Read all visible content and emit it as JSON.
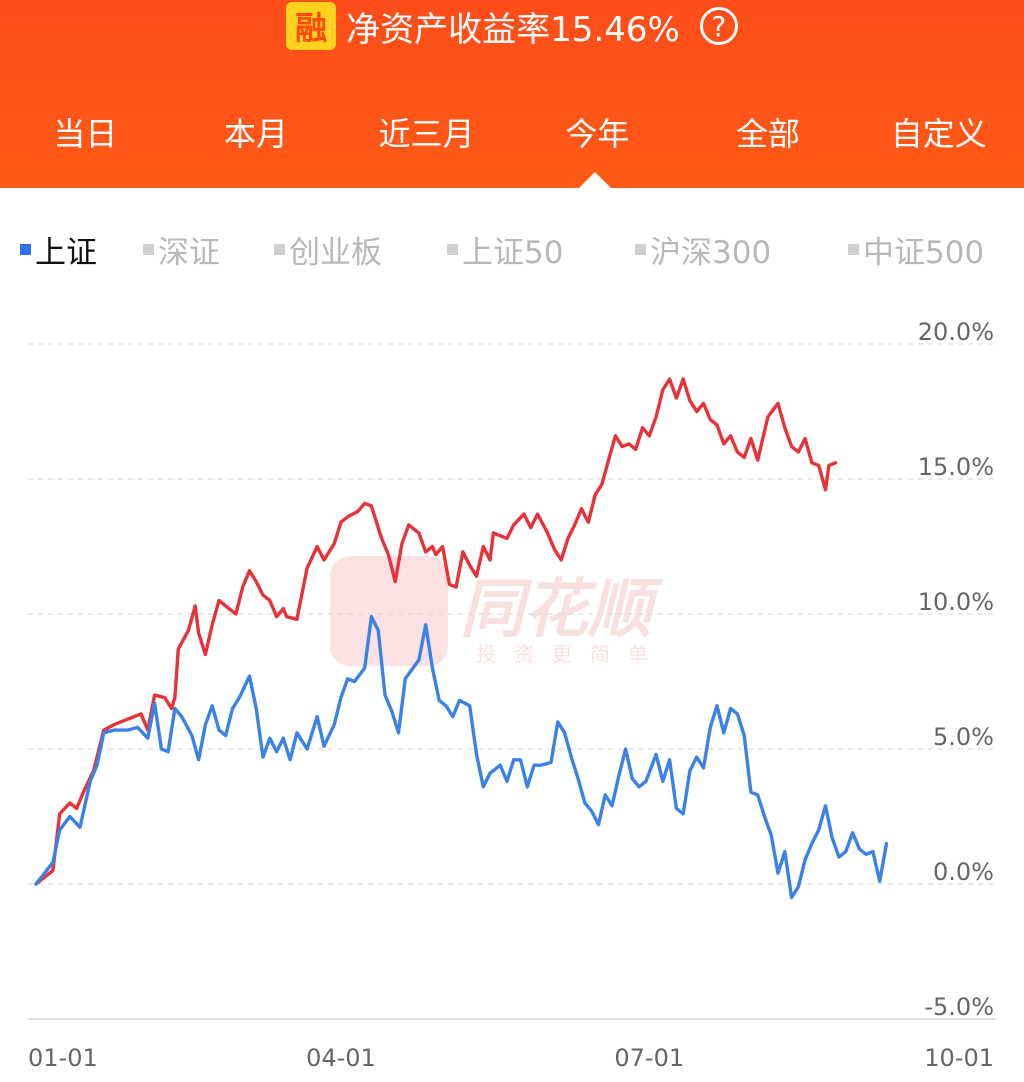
{
  "header": {
    "badge": "融",
    "title": "净资产收益率15.46%",
    "help_glyph": "?",
    "tabs": [
      "当日",
      "本月",
      "近三月",
      "今年",
      "全部",
      "自定义"
    ],
    "active_tab": 3
  },
  "indices": [
    {
      "label": "上证",
      "active": true
    },
    {
      "label": "深证",
      "active": false
    },
    {
      "label": "创业板",
      "active": false
    },
    {
      "label": "上证50",
      "active": false
    },
    {
      "label": "沪深300",
      "active": false
    },
    {
      "label": "中证500",
      "active": false
    }
  ],
  "watermark": {
    "brand": "同花顺",
    "slogan": "投资更简单"
  },
  "colors": {
    "header": "#ff4d1a",
    "portfolio": "#e8323a",
    "index": "#3a82e8",
    "active_index": "#2f6ff0"
  },
  "chart_data": {
    "type": "line",
    "y_tick_labels": [
      "20.0%",
      "15.0%",
      "10.0%",
      "5.0%",
      "0.0%",
      "-5.0%"
    ],
    "y_ticks": [
      20,
      15,
      10,
      5,
      0,
      -5
    ],
    "ylim": [
      -5,
      20
    ],
    "x_tick_labels": [
      "01-01",
      "04-01",
      "07-01",
      "10-01"
    ],
    "x_ticks": [
      0,
      90,
      181,
      273
    ],
    "xlim": [
      0,
      273
    ],
    "grid": true,
    "series": [
      {
        "color": "#e8323a",
        "points": [
          [
            0,
            0.0
          ],
          [
            5,
            0.5
          ],
          [
            7,
            2.6
          ],
          [
            10,
            3.0
          ],
          [
            12,
            2.8
          ],
          [
            14,
            3.4
          ],
          [
            17,
            4.2
          ],
          [
            20,
            5.7
          ],
          [
            23,
            5.9
          ],
          [
            27,
            6.1
          ],
          [
            31,
            6.3
          ],
          [
            33,
            5.7
          ],
          [
            35,
            7.0
          ],
          [
            38,
            6.9
          ],
          [
            40,
            6.5
          ],
          [
            41,
            6.9
          ],
          [
            42,
            8.7
          ],
          [
            45,
            9.4
          ],
          [
            47,
            10.3
          ],
          [
            48,
            9.3
          ],
          [
            50,
            8.5
          ],
          [
            52,
            9.6
          ],
          [
            54,
            10.5
          ],
          [
            56,
            10.3
          ],
          [
            59,
            10.0
          ],
          [
            61,
            11.0
          ],
          [
            63,
            11.6
          ],
          [
            65,
            11.2
          ],
          [
            67,
            10.7
          ],
          [
            69,
            10.5
          ],
          [
            71,
            9.9
          ],
          [
            73,
            10.2
          ],
          [
            74,
            9.9
          ],
          [
            77,
            9.8
          ],
          [
            80,
            11.7
          ],
          [
            83,
            12.5
          ],
          [
            85,
            12.0
          ],
          [
            88,
            12.6
          ],
          [
            90,
            13.4
          ],
          [
            92,
            13.6
          ],
          [
            95,
            13.8
          ],
          [
            97,
            14.1
          ],
          [
            99,
            14.0
          ],
          [
            102,
            12.8
          ],
          [
            104,
            12.2
          ],
          [
            106,
            11.2
          ],
          [
            108,
            12.6
          ],
          [
            110,
            13.3
          ],
          [
            113,
            13.0
          ],
          [
            115,
            12.3
          ],
          [
            117,
            12.5
          ],
          [
            118,
            12.2
          ],
          [
            120,
            12.5
          ],
          [
            122,
            11.1
          ],
          [
            124,
            11.0
          ],
          [
            126,
            12.3
          ],
          [
            128,
            11.8
          ],
          [
            130,
            11.4
          ],
          [
            132,
            12.5
          ],
          [
            134,
            12.0
          ],
          [
            135,
            13.0
          ],
          [
            139,
            12.8
          ],
          [
            141,
            13.3
          ],
          [
            144,
            13.7
          ],
          [
            146,
            13.2
          ],
          [
            148,
            13.7
          ],
          [
            151,
            13.0
          ],
          [
            153,
            12.4
          ],
          [
            155,
            12.0
          ],
          [
            157,
            12.8
          ],
          [
            159,
            13.3
          ],
          [
            161,
            13.9
          ],
          [
            163,
            13.4
          ],
          [
            165,
            14.4
          ],
          [
            167,
            14.8
          ],
          [
            169,
            15.7
          ],
          [
            171,
            16.6
          ],
          [
            173,
            16.2
          ],
          [
            175,
            16.3
          ],
          [
            177,
            16.1
          ],
          [
            179,
            16.9
          ],
          [
            181,
            16.6
          ],
          [
            183,
            17.3
          ],
          [
            185,
            18.3
          ],
          [
            187,
            18.7
          ],
          [
            189,
            18.0
          ],
          [
            191,
            18.7
          ],
          [
            193,
            17.9
          ],
          [
            195,
            17.5
          ],
          [
            197,
            17.8
          ],
          [
            199,
            17.2
          ],
          [
            201,
            17.0
          ],
          [
            203,
            16.3
          ],
          [
            205,
            16.6
          ],
          [
            207,
            16.0
          ],
          [
            209,
            15.8
          ],
          [
            211,
            16.5
          ],
          [
            213,
            15.7
          ],
          [
            216,
            17.3
          ],
          [
            219,
            17.8
          ],
          [
            221,
            16.9
          ],
          [
            223,
            16.2
          ],
          [
            225,
            16.0
          ],
          [
            227,
            16.5
          ],
          [
            229,
            15.6
          ],
          [
            231,
            15.5
          ],
          [
            233,
            14.6
          ],
          [
            234,
            15.5
          ],
          [
            236,
            15.6
          ]
        ]
      },
      {
        "color": "#3a82e8",
        "points": [
          [
            0,
            0.0
          ],
          [
            5,
            0.8
          ],
          [
            7,
            2.0
          ],
          [
            10,
            2.5
          ],
          [
            13,
            2.1
          ],
          [
            16,
            3.8
          ],
          [
            18,
            4.4
          ],
          [
            20,
            5.6
          ],
          [
            23,
            5.7
          ],
          [
            27,
            5.7
          ],
          [
            30,
            5.8
          ],
          [
            33,
            5.4
          ],
          [
            35,
            6.7
          ],
          [
            37,
            5.0
          ],
          [
            39,
            4.9
          ],
          [
            41,
            6.5
          ],
          [
            43,
            6.2
          ],
          [
            46,
            5.5
          ],
          [
            48,
            4.6
          ],
          [
            50,
            5.9
          ],
          [
            52,
            6.6
          ],
          [
            54,
            5.7
          ],
          [
            56,
            5.5
          ],
          [
            58,
            6.5
          ],
          [
            60,
            6.9
          ],
          [
            63,
            7.7
          ],
          [
            65,
            6.5
          ],
          [
            67,
            4.7
          ],
          [
            69,
            5.4
          ],
          [
            71,
            4.9
          ],
          [
            73,
            5.4
          ],
          [
            75,
            4.6
          ],
          [
            77,
            5.6
          ],
          [
            80,
            5.0
          ],
          [
            83,
            6.2
          ],
          [
            85,
            5.1
          ],
          [
            88,
            5.9
          ],
          [
            90,
            6.9
          ],
          [
            92,
            7.6
          ],
          [
            94,
            7.5
          ],
          [
            97,
            8.0
          ],
          [
            99,
            9.9
          ],
          [
            101,
            9.4
          ],
          [
            103,
            7.0
          ],
          [
            105,
            6.4
          ],
          [
            107,
            5.6
          ],
          [
            109,
            7.6
          ],
          [
            113,
            8.3
          ],
          [
            115,
            9.6
          ],
          [
            117,
            8.0
          ],
          [
            119,
            6.8
          ],
          [
            121,
            6.6
          ],
          [
            123,
            6.2
          ],
          [
            125,
            6.8
          ],
          [
            128,
            6.6
          ],
          [
            130,
            4.8
          ],
          [
            132,
            3.6
          ],
          [
            134,
            4.1
          ],
          [
            137,
            4.4
          ],
          [
            139,
            3.8
          ],
          [
            141,
            4.6
          ],
          [
            143,
            4.6
          ],
          [
            145,
            3.6
          ],
          [
            147,
            4.4
          ],
          [
            149,
            4.4
          ],
          [
            152,
            4.5
          ],
          [
            154,
            6.0
          ],
          [
            156,
            5.6
          ],
          [
            158,
            4.7
          ],
          [
            160,
            3.9
          ],
          [
            162,
            3.0
          ],
          [
            164,
            2.7
          ],
          [
            166,
            2.2
          ],
          [
            168,
            3.3
          ],
          [
            170,
            2.9
          ],
          [
            172,
            4.0
          ],
          [
            174,
            5.0
          ],
          [
            176,
            3.9
          ],
          [
            178,
            3.6
          ],
          [
            180,
            3.8
          ],
          [
            183,
            4.8
          ],
          [
            185,
            3.8
          ],
          [
            187,
            4.6
          ],
          [
            189,
            2.8
          ],
          [
            191,
            2.6
          ],
          [
            193,
            4.2
          ],
          [
            195,
            4.7
          ],
          [
            197,
            4.3
          ],
          [
            199,
            5.8
          ],
          [
            201,
            6.6
          ],
          [
            203,
            5.6
          ],
          [
            205,
            6.5
          ],
          [
            207,
            6.3
          ],
          [
            209,
            5.5
          ],
          [
            211,
            3.4
          ],
          [
            213,
            3.3
          ],
          [
            215,
            2.5
          ],
          [
            217,
            1.8
          ],
          [
            219,
            0.4
          ],
          [
            221,
            1.2
          ],
          [
            223,
            -0.5
          ],
          [
            225,
            -0.1
          ],
          [
            227,
            0.9
          ],
          [
            229,
            1.5
          ],
          [
            231,
            2.0
          ],
          [
            233,
            2.9
          ],
          [
            235,
            1.7
          ],
          [
            237,
            1.0
          ],
          [
            239,
            1.2
          ],
          [
            241,
            1.9
          ],
          [
            243,
            1.3
          ],
          [
            245,
            1.1
          ],
          [
            247,
            1.2
          ],
          [
            249,
            0.1
          ],
          [
            251,
            1.5
          ]
        ]
      }
    ]
  }
}
